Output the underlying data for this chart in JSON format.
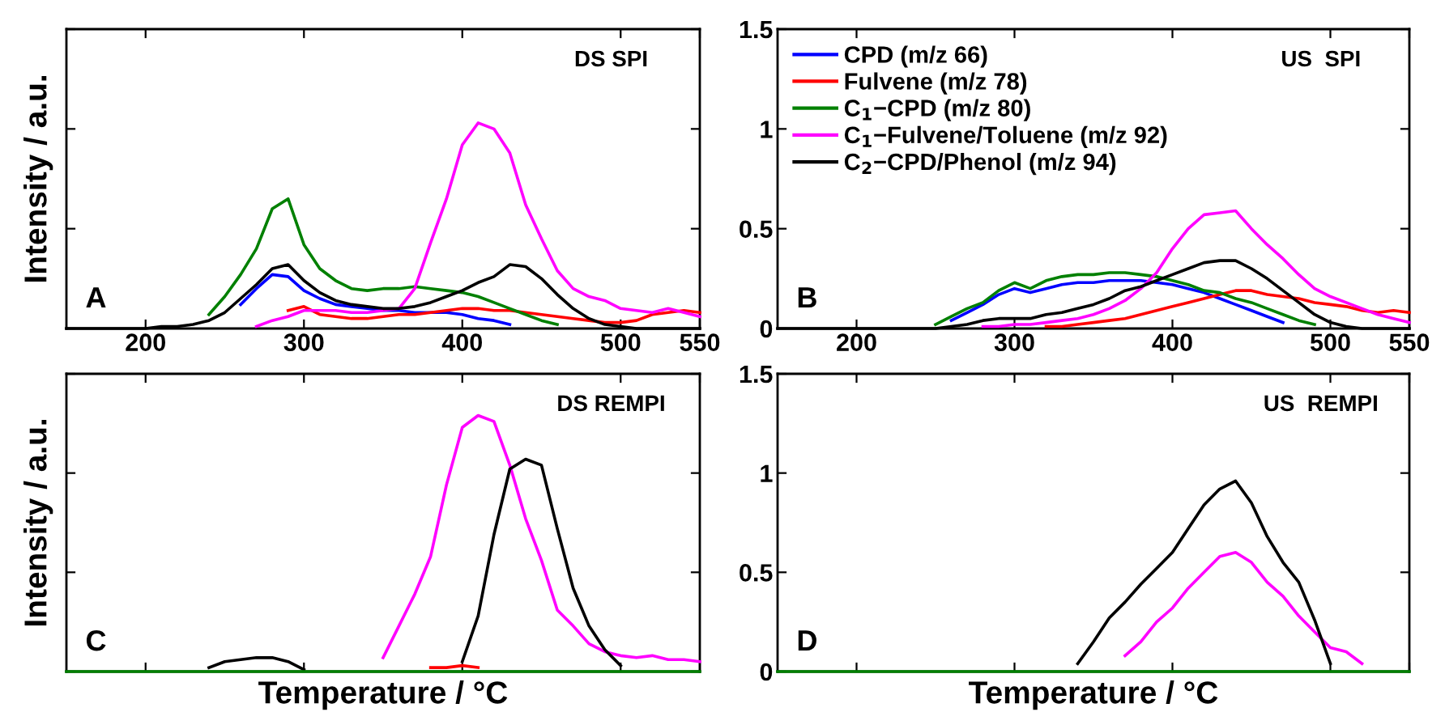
{
  "chart_data": [
    {
      "type": "line",
      "title": "DS SPI",
      "annotations": [
        "A"
      ],
      "ylabel": "Intensity / a.u.",
      "xlim": [
        150,
        550
      ],
      "ylim": [
        0,
        1.5
      ],
      "xticks": [
        200,
        300,
        400,
        500,
        550
      ],
      "yticks": [
        0,
        0.5,
        1,
        1.5
      ],
      "tick_labels": "x",
      "legend": false,
      "x": [
        150,
        160,
        170,
        180,
        190,
        200,
        210,
        220,
        230,
        240,
        250,
        260,
        270,
        280,
        290,
        300,
        310,
        320,
        330,
        340,
        350,
        360,
        370,
        380,
        390,
        400,
        410,
        420,
        430,
        440,
        450,
        460,
        470,
        480,
        490,
        500,
        510,
        520,
        530,
        540,
        550
      ],
      "series": [
        {
          "color": "#0000ff",
          "values": [
            null,
            null,
            null,
            null,
            null,
            null,
            null,
            null,
            null,
            null,
            null,
            0.12,
            0.2,
            0.27,
            0.26,
            0.19,
            0.15,
            0.12,
            0.11,
            0.1,
            0.09,
            0.09,
            0.08,
            0.08,
            0.08,
            0.07,
            0.05,
            0.04,
            0.02,
            null,
            null,
            null,
            null,
            null,
            null,
            null,
            null,
            null,
            null,
            null,
            null
          ]
        },
        {
          "color": "#ff0000",
          "values": [
            null,
            null,
            null,
            null,
            null,
            null,
            null,
            null,
            null,
            null,
            null,
            null,
            null,
            null,
            0.09,
            0.11,
            0.07,
            0.06,
            0.05,
            0.05,
            0.06,
            0.07,
            0.07,
            0.08,
            0.09,
            0.1,
            0.1,
            0.09,
            0.09,
            0.08,
            0.07,
            0.06,
            0.05,
            0.04,
            0.03,
            0.03,
            0.04,
            0.07,
            0.08,
            0.09,
            0.08
          ]
        },
        {
          "color": "#008000",
          "values": [
            null,
            null,
            null,
            null,
            null,
            null,
            null,
            null,
            null,
            0.07,
            0.16,
            0.27,
            0.4,
            0.6,
            0.65,
            0.42,
            0.3,
            0.24,
            0.2,
            0.19,
            0.2,
            0.2,
            0.21,
            0.2,
            0.19,
            0.18,
            0.16,
            0.13,
            0.1,
            0.07,
            0.04,
            0.02,
            null,
            null,
            null,
            null,
            null,
            null,
            null,
            null,
            null
          ]
        },
        {
          "color": "#ff00ff",
          "values": [
            null,
            null,
            null,
            null,
            null,
            null,
            null,
            null,
            null,
            null,
            null,
            null,
            0.01,
            0.04,
            0.06,
            0.09,
            0.09,
            0.09,
            0.08,
            0.08,
            0.09,
            0.1,
            0.2,
            0.43,
            0.65,
            0.92,
            1.03,
            1.0,
            0.88,
            0.62,
            0.45,
            0.29,
            0.2,
            0.16,
            0.14,
            0.1,
            0.09,
            0.08,
            0.1,
            0.08,
            0.06
          ]
        },
        {
          "color": "#000000",
          "values": [
            0,
            0,
            0,
            0,
            0,
            0,
            0.01,
            0.01,
            0.02,
            0.04,
            0.08,
            0.15,
            0.22,
            0.3,
            0.32,
            0.24,
            0.18,
            0.14,
            0.12,
            0.11,
            0.1,
            0.1,
            0.11,
            0.13,
            0.16,
            0.19,
            0.23,
            0.26,
            0.32,
            0.31,
            0.25,
            0.17,
            0.1,
            0.05,
            0.02,
            0.01,
            0,
            0,
            0,
            0,
            0
          ]
        }
      ]
    },
    {
      "type": "line",
      "title": "US  SPI",
      "annotations": [
        "B"
      ],
      "xlim": [
        150,
        550
      ],
      "ylim": [
        0,
        1.5
      ],
      "xticks": [
        200,
        300,
        400,
        500,
        550
      ],
      "yticks": [
        0,
        0.5,
        1,
        1.5
      ],
      "legend": "top left",
      "x": [
        150,
        160,
        170,
        180,
        190,
        200,
        210,
        220,
        230,
        240,
        250,
        260,
        270,
        280,
        290,
        300,
        310,
        320,
        330,
        340,
        350,
        360,
        370,
        380,
        390,
        400,
        410,
        420,
        430,
        440,
        450,
        460,
        470,
        480,
        490,
        500,
        510,
        520,
        530,
        540,
        550
      ],
      "series": [
        {
          "name": "CPD (m/z 66)",
          "color": "#0000ff",
          "values": [
            null,
            null,
            null,
            null,
            null,
            null,
            null,
            null,
            null,
            null,
            null,
            0.04,
            0.08,
            0.12,
            0.17,
            0.2,
            0.18,
            0.2,
            0.22,
            0.23,
            0.23,
            0.24,
            0.24,
            0.24,
            0.23,
            0.22,
            0.2,
            0.18,
            0.15,
            0.12,
            0.09,
            0.06,
            0.03,
            null,
            null,
            null,
            null,
            null,
            null,
            null,
            null
          ]
        },
        {
          "name": "Fulvene (m/z 78)",
          "color": "#ff0000",
          "values": [
            null,
            null,
            null,
            null,
            null,
            null,
            null,
            null,
            null,
            null,
            null,
            null,
            null,
            null,
            null,
            null,
            null,
            0.01,
            0.01,
            0.02,
            0.03,
            0.04,
            0.05,
            0.07,
            0.09,
            0.11,
            0.13,
            0.15,
            0.17,
            0.19,
            0.19,
            0.17,
            0.16,
            0.15,
            0.13,
            0.12,
            0.11,
            0.09,
            0.08,
            0.09,
            0.08
          ]
        },
        {
          "name": "C$_{1}$−CPD (m/z 80)",
          "color": "#008000",
          "values": [
            null,
            null,
            null,
            null,
            null,
            null,
            null,
            null,
            null,
            null,
            0.02,
            0.06,
            0.1,
            0.13,
            0.19,
            0.23,
            0.2,
            0.24,
            0.26,
            0.27,
            0.27,
            0.28,
            0.28,
            0.27,
            0.26,
            0.24,
            0.22,
            0.19,
            0.18,
            0.15,
            0.13,
            0.1,
            0.07,
            0.04,
            0.02,
            null,
            null,
            null,
            null,
            null,
            null
          ]
        },
        {
          "name": "C$_{1}$−Fulvene/Toluene (m/z 92)",
          "color": "#ff00ff",
          "values": [
            null,
            null,
            null,
            null,
            null,
            null,
            null,
            null,
            null,
            null,
            null,
            null,
            null,
            0.01,
            0.01,
            0.02,
            0.02,
            0.03,
            0.04,
            0.05,
            0.07,
            0.1,
            0.14,
            0.2,
            0.28,
            0.4,
            0.5,
            0.57,
            0.58,
            0.59,
            0.5,
            0.42,
            0.35,
            0.27,
            0.2,
            0.16,
            0.13,
            0.1,
            0.07,
            0.05,
            0.03
          ]
        },
        {
          "name": "C$_{2}$−CPD/Phenol (m/z 94)",
          "color": "#000000",
          "values": [
            0,
            0,
            0,
            0,
            0,
            0,
            0,
            0,
            0,
            0,
            0,
            0.01,
            0.02,
            0.04,
            0.05,
            0.05,
            0.05,
            0.07,
            0.08,
            0.1,
            0.12,
            0.15,
            0.19,
            0.21,
            0.24,
            0.27,
            0.3,
            0.33,
            0.34,
            0.34,
            0.3,
            0.25,
            0.19,
            0.13,
            0.07,
            0.03,
            0.01,
            0,
            0,
            0,
            0
          ]
        }
      ]
    },
    {
      "type": "line",
      "title": "DS REMPI",
      "annotations": [
        "C"
      ],
      "ylabel": "Intensity / a.u.",
      "xlabel": "Temperature / °C",
      "xlim": [
        150,
        550
      ],
      "ylim": [
        0,
        1.5
      ],
      "xticks": [
        200,
        300,
        400,
        500,
        550
      ],
      "yticks": [
        0,
        0.5,
        1,
        1.5
      ],
      "tick_labels": false,
      "legend": false,
      "x": [
        150,
        160,
        170,
        180,
        190,
        200,
        210,
        220,
        230,
        240,
        250,
        260,
        270,
        280,
        290,
        300,
        310,
        320,
        330,
        340,
        350,
        360,
        370,
        380,
        390,
        400,
        410,
        420,
        430,
        440,
        450,
        460,
        470,
        480,
        490,
        500,
        510,
        520,
        530,
        540,
        550
      ],
      "series": [
        {
          "color": "#ff00ff",
          "values": [
            null,
            null,
            null,
            null,
            null,
            null,
            null,
            null,
            null,
            null,
            null,
            null,
            null,
            null,
            null,
            null,
            null,
            null,
            null,
            null,
            0.07,
            0.23,
            0.39,
            0.58,
            0.94,
            1.23,
            1.29,
            1.26,
            1.04,
            0.77,
            0.56,
            0.31,
            0.23,
            0.14,
            0.1,
            0.08,
            0.07,
            0.08,
            0.06,
            0.06,
            0.05
          ]
        },
        {
          "color": "#000000",
          "values": [
            null,
            null,
            null,
            null,
            null,
            null,
            null,
            null,
            null,
            0.02,
            0.05,
            0.06,
            0.07,
            0.07,
            0.05,
            0.01,
            null,
            null,
            null,
            null,
            null,
            null,
            null,
            null,
            null,
            0.05,
            0.28,
            0.69,
            1.02,
            1.07,
            1.04,
            0.72,
            0.42,
            0.23,
            0.11,
            0.03,
            null,
            null,
            null,
            null,
            null
          ]
        },
        {
          "color": "#ff0000",
          "values": [
            null,
            null,
            null,
            null,
            null,
            null,
            null,
            null,
            null,
            null,
            null,
            null,
            null,
            null,
            null,
            null,
            null,
            null,
            null,
            null,
            null,
            null,
            null,
            0.02,
            0.02,
            0.03,
            0.02,
            null,
            null,
            null,
            null,
            null,
            null,
            null,
            null,
            null,
            null,
            null,
            null,
            null,
            null
          ]
        },
        {
          "color": "#008000",
          "values": [
            0,
            0,
            0,
            0,
            0,
            0,
            0,
            0,
            0,
            0,
            0,
            0,
            0,
            0,
            0,
            0,
            0,
            0,
            0,
            0,
            0,
            0,
            0,
            0,
            0,
            0,
            0,
            0,
            0,
            0,
            0,
            0,
            0,
            0,
            0,
            0,
            0,
            0,
            0,
            0,
            0
          ]
        }
      ]
    },
    {
      "type": "line",
      "title": "US  REMPI",
      "annotations": [
        "D"
      ],
      "xlabel": "Temperature / °C",
      "xlim": [
        150,
        550
      ],
      "ylim": [
        0,
        1.5
      ],
      "xticks": [
        200,
        300,
        400,
        500,
        550
      ],
      "yticks": [
        0,
        0.5,
        1,
        1.5
      ],
      "tick_labels": "y",
      "legend": false,
      "x": [
        150,
        160,
        170,
        180,
        190,
        200,
        210,
        220,
        230,
        240,
        250,
        260,
        270,
        280,
        290,
        300,
        310,
        320,
        330,
        340,
        350,
        360,
        370,
        380,
        390,
        400,
        410,
        420,
        430,
        440,
        450,
        460,
        470,
        480,
        490,
        500,
        510,
        520,
        530,
        540,
        550
      ],
      "series": [
        {
          "color": "#ff00ff",
          "values": [
            null,
            null,
            null,
            null,
            null,
            null,
            null,
            null,
            null,
            null,
            null,
            null,
            null,
            null,
            null,
            null,
            null,
            null,
            null,
            null,
            null,
            null,
            0.08,
            0.15,
            0.25,
            0.32,
            0.42,
            0.5,
            0.58,
            0.6,
            0.55,
            0.45,
            0.38,
            0.28,
            0.2,
            0.12,
            0.1,
            0.04,
            null,
            null,
            null
          ]
        },
        {
          "color": "#000000",
          "values": [
            null,
            null,
            null,
            null,
            null,
            null,
            null,
            null,
            null,
            null,
            null,
            null,
            null,
            null,
            null,
            null,
            null,
            null,
            null,
            0.04,
            0.15,
            0.27,
            0.35,
            0.44,
            0.52,
            0.6,
            0.72,
            0.84,
            0.92,
            0.96,
            0.85,
            0.68,
            0.55,
            0.45,
            0.26,
            0.04,
            null,
            null,
            null,
            null,
            null
          ]
        },
        {
          "color": "#008000",
          "values": [
            0,
            0,
            0,
            0,
            0,
            0,
            0,
            0,
            0,
            0,
            0,
            0,
            0,
            0,
            0,
            0,
            0,
            0,
            0,
            0,
            0,
            0,
            0,
            0,
            0,
            0,
            0,
            0,
            0,
            0,
            0,
            0,
            0,
            0,
            0,
            0,
            0,
            0,
            0,
            0,
            0
          ]
        }
      ]
    }
  ]
}
